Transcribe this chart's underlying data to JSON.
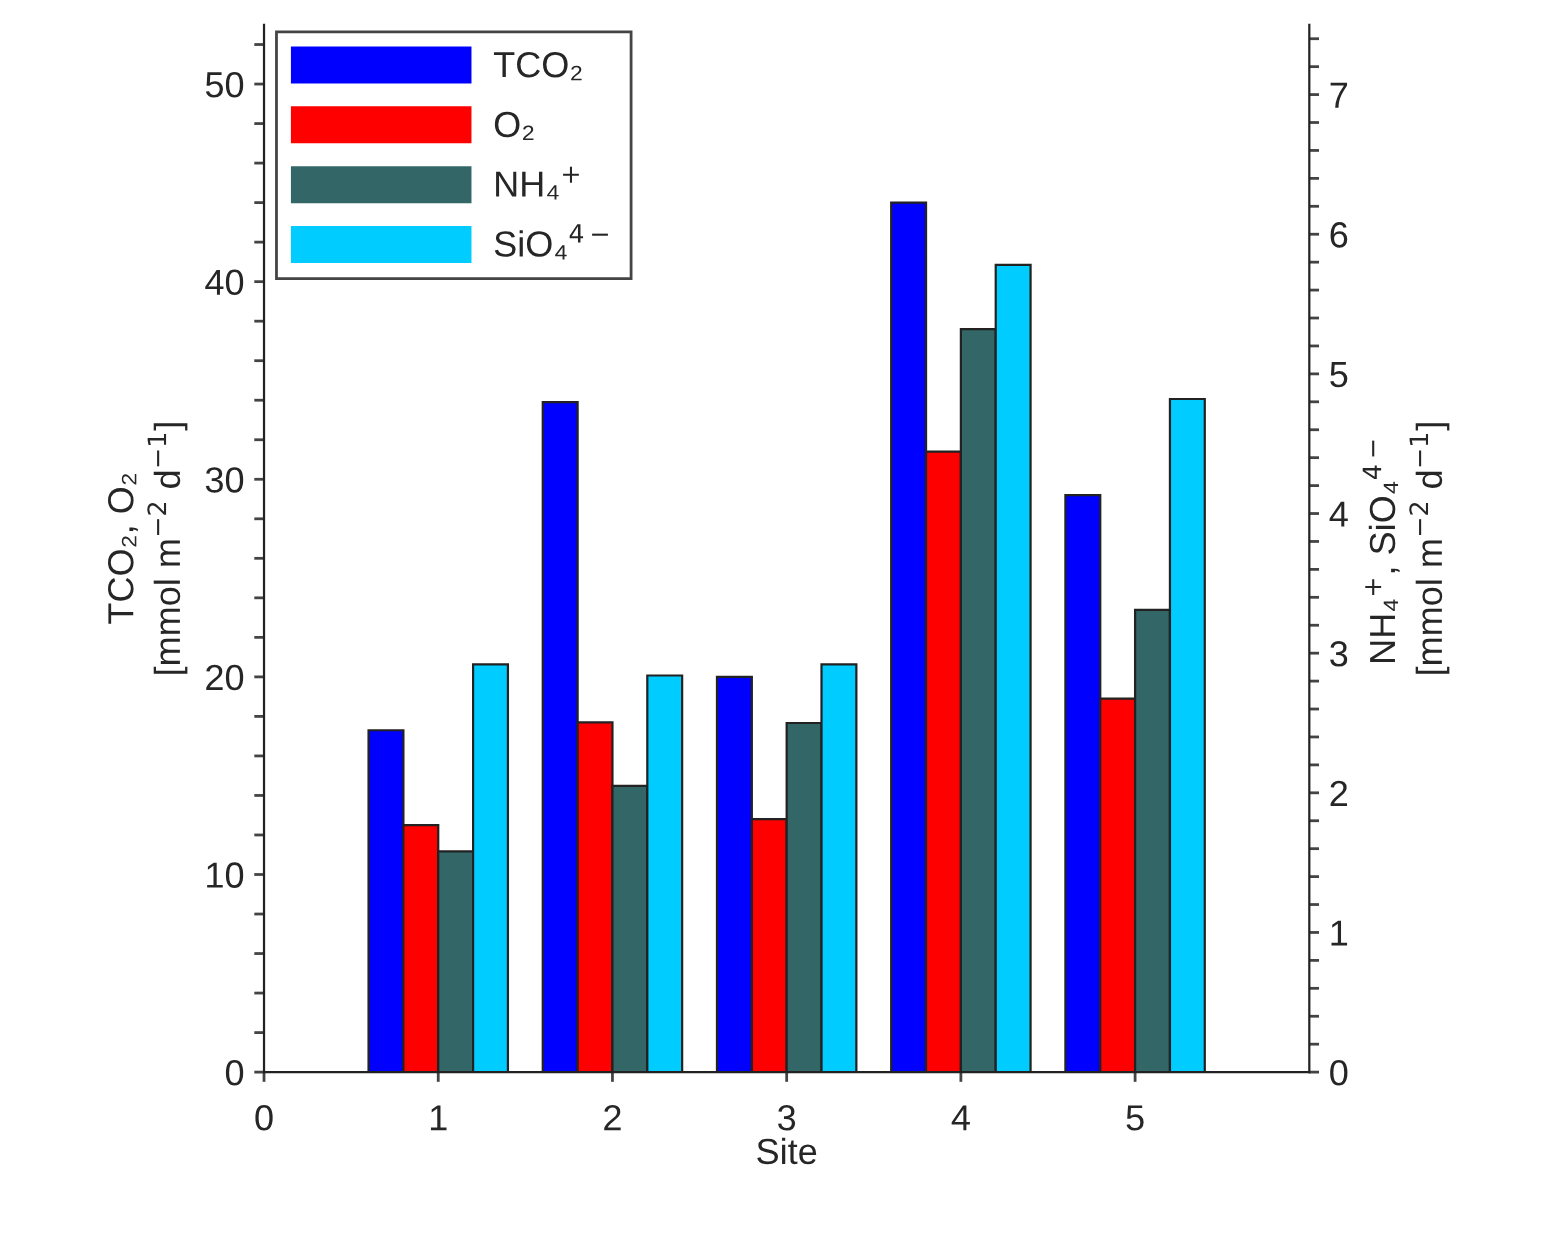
{
  "chart_data": {
    "type": "bar",
    "xlabel": "Site",
    "ylabel": "TCO₂, O₂\n[mmol m$^{−2}$ d$^{−1}$]",
    "y2label": "NH₄$^{+}$, SiO₄$^{4−}$\n[mmol m$^{−2}$ d$^{−1}$]",
    "x": [
      1,
      2,
      3,
      4,
      5
    ],
    "series": [
      {
        "name": "TCO₂",
        "color": "#0000ff",
        "values": [
          17.3,
          33.9,
          20.0,
          44.0,
          29.2
        ]
      },
      {
        "name": "O₂",
        "color": "#ff0000",
        "values": [
          12.5,
          17.7,
          12.8,
          31.4,
          18.9
        ]
      },
      {
        "name": "NH₄$^{+}$",
        "color": "#336666",
        "axis": "y2",
        "values": [
          1.58,
          2.05,
          2.5,
          5.32,
          3.31
        ]
      },
      {
        "name": "SiO₄$^{4−}$",
        "color": "#00ccff",
        "axis": "y2",
        "values": [
          2.92,
          2.84,
          2.92,
          5.78,
          4.82
        ]
      }
    ],
    "xlim": [
      0,
      6
    ],
    "xticks": [
      0,
      1,
      2,
      3,
      4,
      5
    ],
    "ylim": [
      0,
      53
    ],
    "yticks": [
      0,
      {
        "value": 2,
        "label": null
      },
      {
        "value": 4,
        "label": null
      },
      {
        "value": 6,
        "label": null
      },
      {
        "value": 8,
        "label": null
      },
      10,
      {
        "value": 12,
        "label": null
      },
      {
        "value": 14,
        "label": null
      },
      {
        "value": 16,
        "label": null
      },
      {
        "value": 18,
        "label": null
      },
      20,
      {
        "value": 22,
        "label": null
      },
      {
        "value": 24,
        "label": null
      },
      {
        "value": 26,
        "label": null
      },
      {
        "value": 28,
        "label": null
      },
      30,
      {
        "value": 32,
        "label": null
      },
      {
        "value": 34,
        "label": null
      },
      {
        "value": 36,
        "label": null
      },
      {
        "value": 38,
        "label": null
      },
      40,
      {
        "value": 42,
        "label": null
      },
      {
        "value": 44,
        "label": null
      },
      {
        "value": 46,
        "label": null
      },
      {
        "value": 48,
        "label": null
      },
      50,
      {
        "value": 52,
        "label": null
      }
    ],
    "y2lim": [
      0,
      7.5
    ],
    "y2ticks": [
      0,
      {
        "value": 0.2,
        "label": null
      },
      {
        "value": 0.4,
        "label": null
      },
      {
        "value": 0.6,
        "label": null
      },
      {
        "value": 0.8,
        "label": null
      },
      1,
      {
        "value": 1.2,
        "label": null
      },
      {
        "value": 1.4,
        "label": null
      },
      {
        "value": 1.6,
        "label": null
      },
      {
        "value": 1.8,
        "label": null
      },
      2,
      {
        "value": 2.2,
        "label": null
      },
      {
        "value": 2.4,
        "label": null
      },
      {
        "value": 2.6,
        "label": null
      },
      {
        "value": 2.8,
        "label": null
      },
      3,
      {
        "value": 3.2,
        "label": null
      },
      {
        "value": 3.4,
        "label": null
      },
      {
        "value": 3.6,
        "label": null
      },
      {
        "value": 3.8,
        "label": null
      },
      4,
      {
        "value": 4.2,
        "label": null
      },
      {
        "value": 4.4,
        "label": null
      },
      {
        "value": 4.6,
        "label": null
      },
      {
        "value": 4.8,
        "label": null
      },
      5,
      {
        "value": 5.2,
        "label": null
      },
      {
        "value": 5.4,
        "label": null
      },
      {
        "value": 5.6,
        "label": null
      },
      {
        "value": 5.8,
        "label": null
      },
      6,
      {
        "value": 6.2,
        "label": null
      },
      {
        "value": 6.4,
        "label": null
      },
      {
        "value": 6.6,
        "label": null
      },
      {
        "value": 6.8,
        "label": null
      },
      7,
      {
        "value": 7.2,
        "label": null
      },
      {
        "value": 7.4,
        "label": null
      }
    ],
    "legend": "top left"
  }
}
